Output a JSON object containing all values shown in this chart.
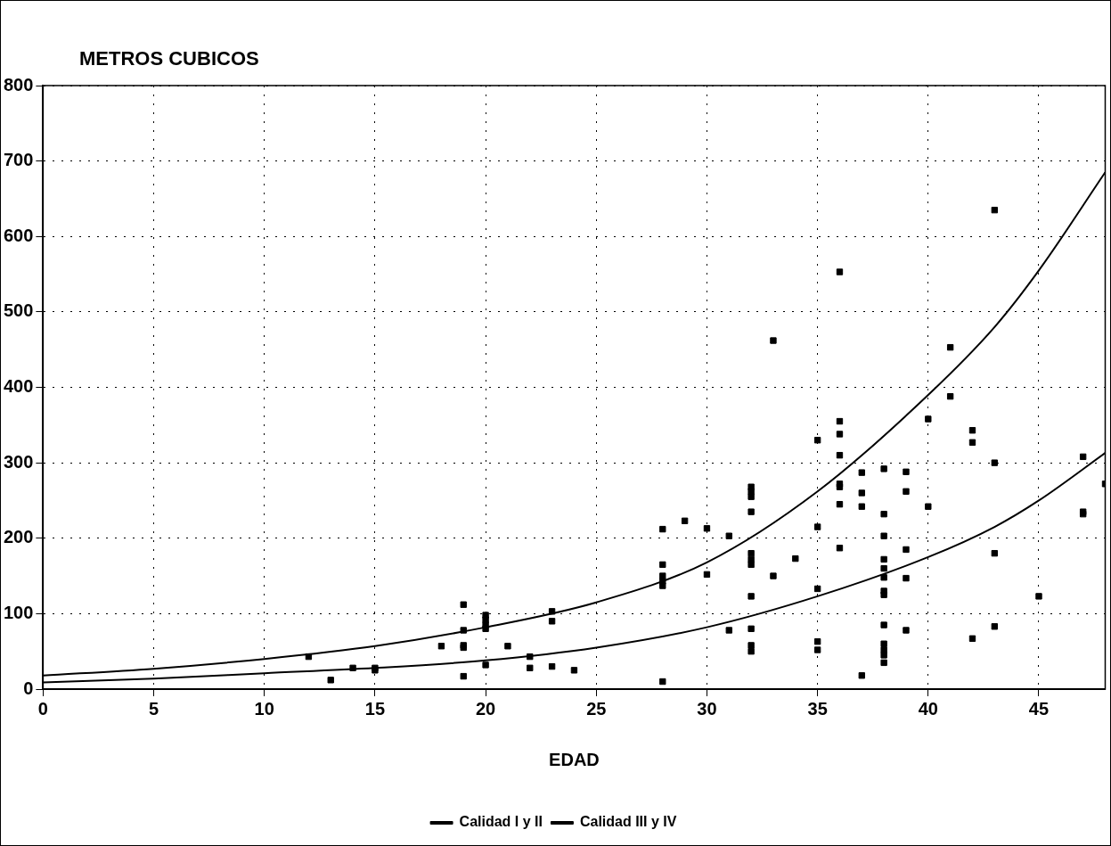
{
  "chart_data": {
    "type": "scatter",
    "ylabel": "METROS CUBICOS",
    "xlabel": "EDAD",
    "xlim": [
      0,
      48
    ],
    "xticks": [
      0,
      5,
      10,
      15,
      20,
      25,
      30,
      35,
      40,
      45
    ],
    "ylim": [
      0,
      800
    ],
    "yticks": [
      0,
      100,
      200,
      300,
      400,
      500,
      600,
      700,
      800
    ],
    "grid": true,
    "legend": "bottom",
    "marker": "square",
    "series": [
      {
        "color": "#000000",
        "x": [
          12,
          13,
          14,
          15,
          15,
          18,
          19,
          19,
          19,
          19,
          19,
          20,
          20,
          20,
          20,
          20,
          21,
          22,
          22,
          23,
          23,
          23,
          24,
          28,
          28,
          28,
          28,
          28,
          28,
          29,
          30,
          30,
          31,
          31,
          32,
          32,
          32,
          32,
          32,
          32,
          32,
          32,
          32,
          32,
          32,
          33,
          33,
          34,
          35,
          35,
          35,
          35,
          35,
          36,
          36,
          36,
          36,
          36,
          36,
          36,
          36,
          37,
          37,
          37,
          37,
          38,
          38,
          38,
          38,
          38,
          38,
          38,
          38,
          38,
          38,
          38,
          38,
          38,
          39,
          39,
          39,
          39,
          39,
          40,
          40,
          41,
          41,
          42,
          42,
          42,
          43,
          43,
          43,
          43,
          45,
          47,
          47,
          47,
          48
        ],
        "values": [
          43,
          12,
          28,
          28,
          25,
          57,
          112,
          78,
          58,
          55,
          17,
          98,
          92,
          85,
          80,
          32,
          57,
          43,
          28,
          103,
          90,
          30,
          25,
          212,
          165,
          150,
          143,
          137,
          10,
          223,
          213,
          152,
          203,
          78,
          268,
          262,
          255,
          235,
          180,
          172,
          165,
          123,
          80,
          58,
          50,
          462,
          150,
          173,
          330,
          215,
          133,
          63,
          52,
          553,
          355,
          338,
          310,
          272,
          268,
          245,
          187,
          287,
          260,
          242,
          18,
          292,
          232,
          203,
          172,
          160,
          148,
          130,
          125,
          85,
          60,
          52,
          45,
          35,
          288,
          262,
          185,
          147,
          78,
          358,
          242,
          453,
          388,
          343,
          327,
          67,
          635,
          300,
          180,
          83,
          123,
          308,
          235,
          232,
          272
        ]
      },
      {
        "type": "line",
        "name": "Calidad I y II",
        "color": "#000000",
        "marker": "none",
        "x": [
          0,
          5,
          10,
          15,
          20,
          25,
          30,
          35,
          40,
          43,
          45,
          48
        ],
        "values": [
          18,
          27,
          40,
          57,
          82,
          115,
          168,
          262,
          390,
          480,
          555,
          685
        ]
      },
      {
        "type": "line",
        "name": "Calidad III y IV",
        "color": "#000000",
        "marker": "none",
        "x": [
          0,
          5,
          10,
          15,
          20,
          25,
          30,
          35,
          40,
          43,
          45,
          48
        ],
        "values": [
          9,
          14,
          21,
          28,
          38,
          55,
          82,
          123,
          175,
          215,
          250,
          313
        ]
      }
    ]
  }
}
